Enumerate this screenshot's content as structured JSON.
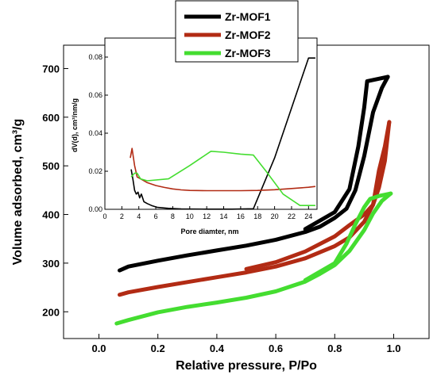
{
  "chart_data": [
    {
      "type": "line",
      "role": "main isotherm plot",
      "xlabel": "Relative pressure, P/Po",
      "ylabel": "Volume adsorbed, cm³/g",
      "xlim": [
        -0.12,
        1.12
      ],
      "ylim": [
        145,
        748
      ],
      "xticks": [
        0.0,
        0.2,
        0.4,
        0.6,
        0.8,
        1.0
      ],
      "yticks": [
        200,
        300,
        400,
        500,
        600,
        700
      ],
      "grid": false,
      "legend_position": "top-center",
      "series": [
        {
          "name": "Zr-MOF1",
          "color": "#000000",
          "adsorption": {
            "x": [
              0.07,
              0.1,
              0.2,
              0.3,
              0.4,
              0.5,
              0.6,
              0.7,
              0.75,
              0.8,
              0.84,
              0.87,
              0.9,
              0.93,
              0.96,
              0.98
            ],
            "y": [
              285,
              293,
              305,
              316,
              326,
              336,
              348,
              364,
              375,
              393,
              412,
              450,
              520,
              610,
              660,
              683
            ]
          },
          "desorption": {
            "x": [
              0.98,
              0.91,
              0.9,
              0.88,
              0.85,
              0.8,
              0.7
            ],
            "y": [
              683,
              674,
              620,
              540,
              452,
              405,
              370
            ]
          }
        },
        {
          "name": "Zr-MOF2",
          "color": "#b22b14",
          "adsorption": {
            "x": [
              0.07,
              0.1,
              0.2,
              0.3,
              0.4,
              0.5,
              0.6,
              0.7,
              0.8,
              0.85,
              0.9,
              0.93,
              0.95,
              0.97,
              0.985
            ],
            "y": [
              235,
              240,
              251,
              261,
              271,
              281,
              293,
              310,
              335,
              353,
              385,
              420,
              455,
              510,
              590
            ]
          },
          "desorption": {
            "x": [
              0.985,
              0.97,
              0.95,
              0.93,
              0.9,
              0.85,
              0.8,
              0.7,
              0.6,
              0.5
            ],
            "y": [
              590,
              540,
              490,
              420,
              400,
              378,
              355,
              324,
              302,
              288
            ]
          }
        },
        {
          "name": "Zr-MOF3",
          "color": "#44dd30",
          "adsorption": {
            "x": [
              0.06,
              0.1,
              0.2,
              0.3,
              0.4,
              0.5,
              0.6,
              0.7,
              0.75,
              0.8,
              0.85,
              0.9,
              0.93,
              0.96,
              0.99
            ],
            "y": [
              176,
              183,
              199,
              210,
              219,
              229,
              242,
              262,
              278,
              296,
              325,
              368,
              402,
              428,
              443
            ]
          },
          "desorption": {
            "x": [
              0.99,
              0.95,
              0.92,
              0.9,
              0.87,
              0.84,
              0.8,
              0.7
            ],
            "y": [
              443,
              438,
              432,
              415,
              380,
              340,
              300,
              265
            ]
          }
        }
      ]
    },
    {
      "type": "line",
      "role": "inset pore size distribution",
      "xlabel": "Pore diamter, nm",
      "ylabel": "dV(d), cm³/nm/g",
      "xlim": [
        0,
        25
      ],
      "ylim": [
        0,
        0.09
      ],
      "xticks": [
        0,
        2,
        4,
        6,
        8,
        10,
        12,
        14,
        16,
        18,
        20,
        22,
        24
      ],
      "xtick_labels": [
        "0",
        "2",
        "4",
        "6",
        "8",
        "10",
        "12",
        "14",
        "16",
        "18",
        "20",
        "22",
        "24"
      ],
      "yticks": [
        0.0,
        0.02,
        0.04,
        0.06,
        0.08
      ],
      "ytick_labels": [
        "0.00",
        "0.02",
        "0.04",
        "0.06",
        "0.08"
      ],
      "series": [
        {
          "name": "Zr-MOF1",
          "color": "#000000",
          "x": [
            3.1,
            3.3,
            3.5,
            3.7,
            3.9,
            4.1,
            4.3,
            4.6,
            5.0,
            5.5,
            6.2,
            7.5,
            9,
            12,
            15,
            17.5,
            20,
            24.0,
            24.8
          ],
          "y": [
            0.021,
            0.016,
            0.01,
            0.008,
            0.009,
            0.006,
            0.008,
            0.004,
            0.003,
            0.002,
            0.001,
            0.0005,
            0.0002,
            0.0001,
            0.0001,
            0.0003,
            0.027,
            0.0795,
            0.0795
          ]
        },
        {
          "name": "Zr-MOF2",
          "color": "#b22b14",
          "x": [
            3.0,
            3.2,
            3.5,
            3.8,
            4.2,
            5,
            6,
            7,
            8,
            9,
            10,
            12,
            14,
            16,
            18,
            20,
            22,
            24,
            24.8
          ],
          "y": [
            0.027,
            0.032,
            0.023,
            0.017,
            0.016,
            0.014,
            0.0125,
            0.0115,
            0.0107,
            0.0102,
            0.0099,
            0.0098,
            0.0098,
            0.0098,
            0.0099,
            0.0103,
            0.0109,
            0.0116,
            0.012
          ]
        },
        {
          "name": "Zr-MOF3",
          "color": "#44dd30",
          "x": [
            3.1,
            3.5,
            3.8,
            4.2,
            5,
            7.5,
            10,
            12.5,
            14,
            16,
            17.5,
            19,
            21,
            23,
            24.8
          ],
          "y": [
            0.017,
            0.019,
            0.019,
            0.016,
            0.015,
            0.016,
            0.023,
            0.0305,
            0.03,
            0.029,
            0.0285,
            0.02,
            0.008,
            0.002,
            0.002
          ]
        }
      ]
    }
  ]
}
